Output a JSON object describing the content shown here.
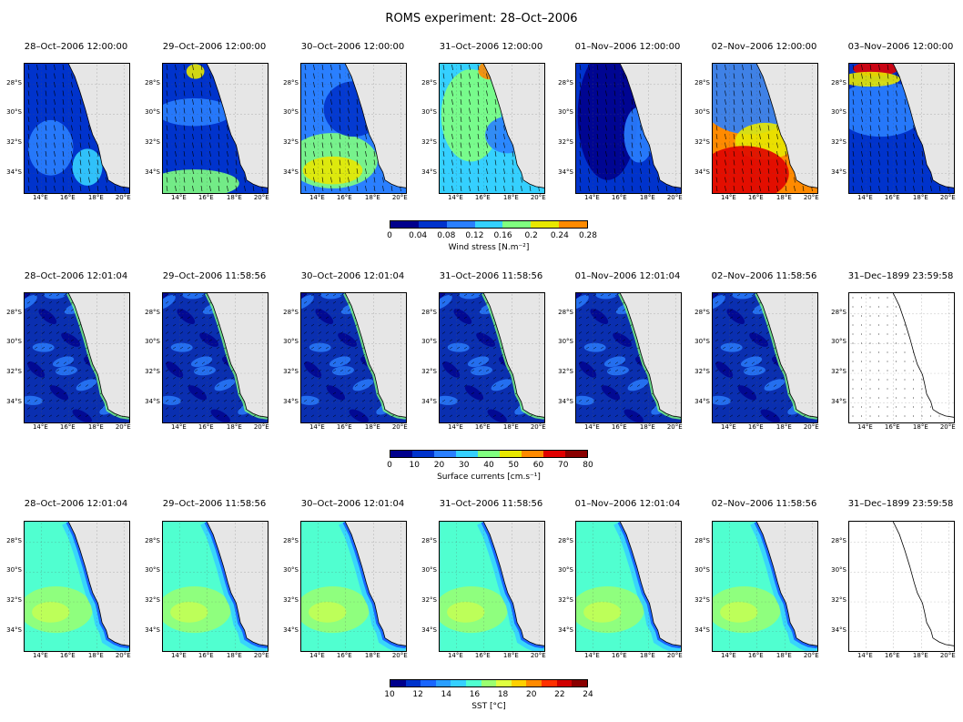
{
  "title": "ROMS experiment: 28–Oct–2006",
  "lat_labels": [
    "28°S",
    "30°S",
    "32°S",
    "34°S"
  ],
  "lon_labels": [
    "14°E",
    "16°E",
    "18°E",
    "20°E"
  ],
  "rows": [
    {
      "name": "wind",
      "panel_titles": [
        "28–Oct–2006 12:00:00",
        "29–Oct–2006 12:00:00",
        "30–Oct–2006 12:00:00",
        "31–Oct–2006 12:00:00",
        "01–Nov–2006 12:00:00",
        "02–Nov–2006 12:00:00",
        "03–Nov–2006 12:00:00"
      ],
      "colorbar": {
        "ticks": [
          "0",
          "0.04",
          "0.08",
          "0.12",
          "0.16",
          "0.2",
          "0.24",
          "0.28"
        ],
        "colors": [
          "#00008c",
          "#0033cc",
          "#2a7fff",
          "#35d0ff",
          "#80ff80",
          "#e8e800",
          "#ff8a00"
        ],
        "label": "Wind stress [N.m⁻²]"
      }
    },
    {
      "name": "currents",
      "panel_titles": [
        "28–Oct–2006 12:01:04",
        "29–Oct–2006 11:58:56",
        "30–Oct–2006 12:01:04",
        "31–Oct–2006 11:58:56",
        "01–Nov–2006 12:01:04",
        "02–Nov–2006 11:58:56",
        "31–Dec–1899 23:59:58"
      ],
      "colorbar": {
        "ticks": [
          "0",
          "10",
          "20",
          "30",
          "40",
          "50",
          "60",
          "70",
          "80"
        ],
        "colors": [
          "#00008c",
          "#0033cc",
          "#2a7fff",
          "#35d0ff",
          "#80ff80",
          "#e8e800",
          "#ff8a00",
          "#e00000",
          "#8a0000"
        ],
        "label": "Surface currents [cm.s⁻¹]"
      }
    },
    {
      "name": "sst",
      "panel_titles": [
        "28–Oct–2006 12:01:04",
        "29–Oct–2006 11:58:56",
        "30–Oct–2006 12:01:04",
        "31–Oct–2006 11:58:56",
        "01–Nov–2006 12:01:04",
        "02–Nov–2006 11:58:56",
        "31–Dec–1899 23:59:58"
      ],
      "colorbar": {
        "ticks": [
          "10",
          "12",
          "14",
          "16",
          "18",
          "20",
          "22",
          "24"
        ],
        "colors": [
          "#00008c",
          "#0033cc",
          "#1a66ff",
          "#2a9fff",
          "#35d0ff",
          "#50ffd0",
          "#9aff70",
          "#e0ff40",
          "#ffd000",
          "#ff8a00",
          "#ff3000",
          "#d00000",
          "#8a0000"
        ],
        "label": "SST [°C]"
      }
    }
  ]
}
